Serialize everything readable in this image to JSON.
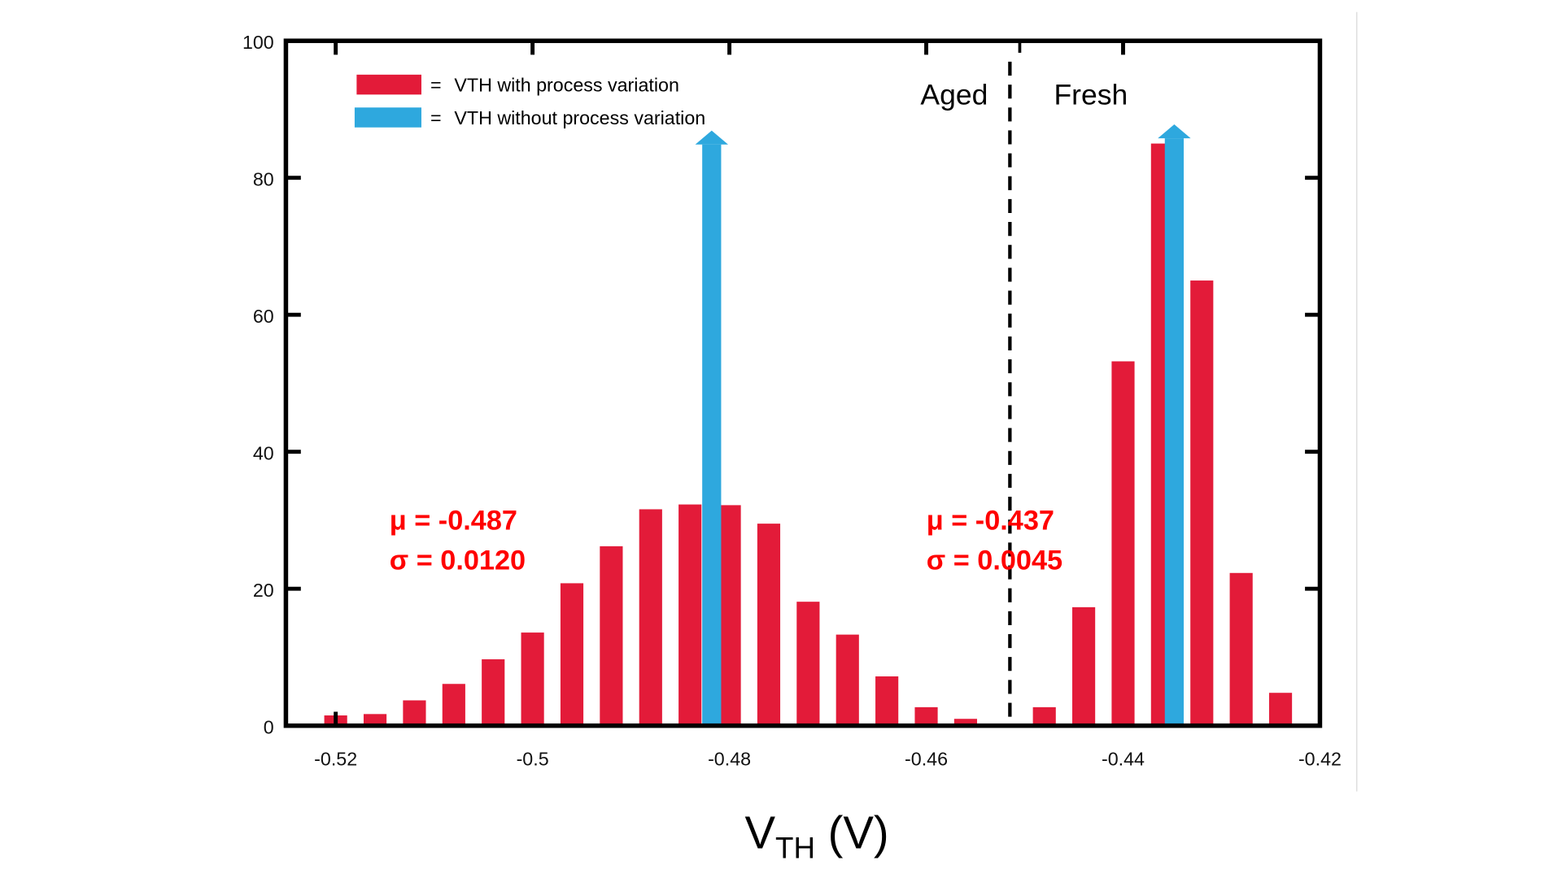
{
  "chart_data": {
    "type": "bar",
    "title": "",
    "xlabel": "VTH (V)",
    "xlabel_main": "V",
    "xlabel_sub": "TH",
    "xlabel_unit": " (V)",
    "ylabel": "",
    "xlim": [
      -0.523,
      -0.42
    ],
    "ylim": [
      0,
      100
    ],
    "grid": false,
    "x_ticks": [
      -0.52,
      -0.5,
      -0.48,
      -0.46,
      -0.44,
      -0.42
    ],
    "x_tick_labels": [
      "-0.52",
      "-0.5",
      "-0.48",
      "-0.46",
      "-0.44",
      "-0.42"
    ],
    "y_ticks": [
      0,
      20,
      40,
      60,
      80,
      100
    ],
    "y_tick_labels": [
      "0",
      "20",
      "40",
      "60",
      "80",
      "100"
    ],
    "series": [
      {
        "name": "VTH with process variation",
        "color": "#e31b39",
        "x": [
          -0.52,
          -0.516,
          -0.512,
          -0.508,
          -0.504,
          -0.5,
          -0.496,
          -0.492,
          -0.488,
          -0.484,
          -0.48,
          -0.476,
          -0.472,
          -0.468,
          -0.464,
          -0.46,
          -0.456,
          -0.448,
          -0.444,
          -0.44,
          -0.436,
          -0.432,
          -0.428,
          -0.424
        ],
        "values": [
          1.5,
          1.7,
          3.7,
          6.1,
          9.7,
          13.6,
          20.8,
          26.2,
          31.6,
          32.3,
          32.2,
          29.5,
          18.1,
          13.3,
          7.2,
          2.7,
          1.0,
          2.7,
          17.3,
          53.2,
          85,
          65,
          22.3,
          4.8
        ]
      },
      {
        "name": "VTH without process variation",
        "color": "#2ea8de",
        "type": "arrow",
        "x": [
          -0.4818,
          -0.4348
        ],
        "values": [
          100,
          100
        ],
        "note": "delta spikes drawn as upward arrows"
      }
    ],
    "legend": {
      "placement": "top-left",
      "entries": [
        {
          "label": "VTH with process variation",
          "color": "#e31b39"
        },
        {
          "label": "VTH without process variation",
          "color": "#2ea8de"
        }
      ],
      "separator": "="
    },
    "divider": {
      "x": -0.4515,
      "style": "dashed",
      "left_label": "Aged",
      "right_label": "Fresh"
    },
    "annotations": [
      {
        "text_mu": "μ = -0.487",
        "text_sigma": "σ = 0.0120",
        "color": "#ff0000",
        "group": "aged"
      },
      {
        "text_mu": "μ = -0.437",
        "text_sigma": "σ = 0.0045",
        "color": "#ff0000",
        "group": "fresh"
      }
    ]
  }
}
